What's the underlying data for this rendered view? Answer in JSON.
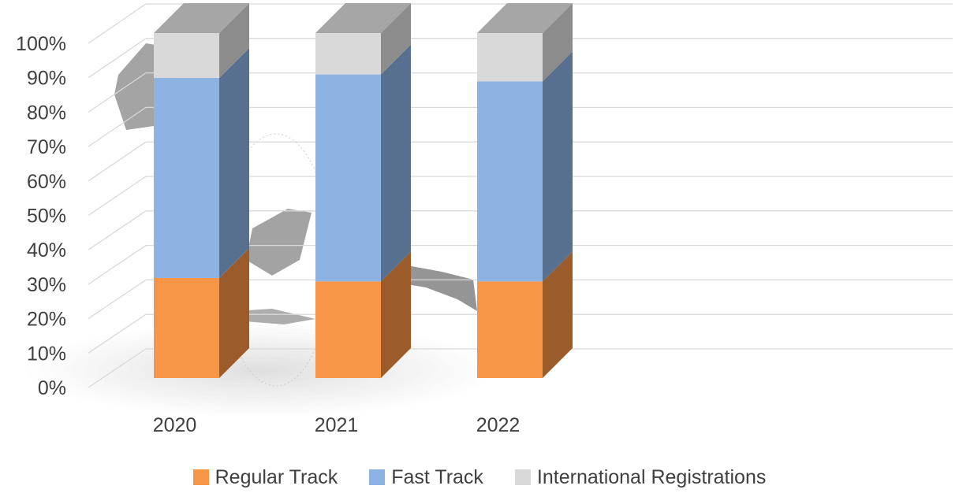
{
  "chart_data": {
    "type": "bar",
    "stacked": true,
    "style": "3d-column-100-percent",
    "categories": [
      "2020",
      "2021",
      "2022"
    ],
    "series": [
      {
        "name": "Regular Track",
        "values": [
          29,
          28,
          28
        ],
        "color": "#f79646",
        "side_color": "#9c5b2a"
      },
      {
        "name": "Fast Track",
        "values": [
          58,
          60,
          58
        ],
        "color": "#8db3e2",
        "side_color": "#58708f"
      },
      {
        "name": "International Registrations",
        "values": [
          13,
          12,
          14
        ],
        "color": "#d9d9d9",
        "side_color": "#8c8c8c"
      }
    ],
    "y_ticks": [
      "0%",
      "10%",
      "20%",
      "30%",
      "40%",
      "50%",
      "60%",
      "70%",
      "80%",
      "90%",
      "100%"
    ],
    "ylim": [
      0,
      100
    ],
    "grid": true,
    "legend_position": "bottom",
    "title": "",
    "xlabel": "",
    "ylabel": ""
  }
}
